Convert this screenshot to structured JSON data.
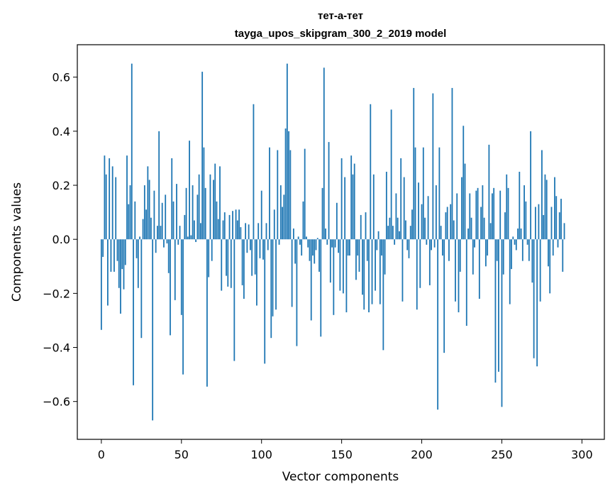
{
  "chart_data": {
    "type": "bar",
    "title": "тет-а-тет",
    "subtitle": "tayga_upos_skipgram_300_2_2019 model",
    "xlabel": "Vector components",
    "ylabel": "Components values",
    "xlim": [
      -15,
      314
    ],
    "ylim": [
      -0.74,
      0.72
    ],
    "xticks": [
      0,
      50,
      100,
      150,
      200,
      250,
      300
    ],
    "xtick_labels": [
      "0",
      "50",
      "100",
      "150",
      "200",
      "250",
      "300"
    ],
    "yticks": [
      -0.6,
      -0.4,
      -0.2,
      0.0,
      0.2,
      0.4,
      0.6
    ],
    "ytick_labels": [
      "−0.6",
      "−0.4",
      "−0.2",
      "0.0",
      "0.2",
      "0.4",
      "0.6"
    ],
    "color": "#1f77b4",
    "values": [
      -0.335,
      -0.065,
      0.31,
      0.24,
      -0.245,
      0.3,
      -0.12,
      0.27,
      -0.12,
      0.23,
      -0.08,
      -0.18,
      -0.275,
      -0.11,
      -0.185,
      -0.095,
      0.31,
      0.13,
      0.2,
      0.65,
      -0.54,
      0.14,
      -0.07,
      -0.18,
      0.01,
      -0.365,
      0.075,
      0.2,
      0.11,
      0.27,
      0.22,
      0.08,
      -0.67,
      0.18,
      -0.05,
      0.05,
      0.4,
      0.05,
      0.135,
      -0.03,
      0.165,
      -0.015,
      -0.125,
      -0.355,
      0.3,
      0.14,
      -0.225,
      0.205,
      -0.02,
      0.05,
      -0.28,
      -0.5,
      0.09,
      0.19,
      0.01,
      0.365,
      0.015,
      0.2,
      0.07,
      -0.01,
      0.165,
      0.24,
      0.06,
      0.62,
      0.34,
      0.19,
      -0.545,
      -0.14,
      0.24,
      -0.08,
      0.22,
      0.28,
      0.14,
      0.075,
      0.27,
      -0.19,
      0.07,
      0.1,
      -0.135,
      -0.175,
      0.09,
      -0.18,
      0.105,
      -0.45,
      0.11,
      0.07,
      0.11,
      0.045,
      -0.17,
      -0.22,
      0.06,
      -0.05,
      0.055,
      -0.04,
      -0.135,
      0.5,
      -0.13,
      -0.245,
      0.06,
      -0.07,
      0.18,
      -0.075,
      -0.46,
      0.06,
      -0.04,
      0.34,
      -0.365,
      -0.285,
      0.11,
      -0.26,
      0.33,
      -0.02,
      0.2,
      0.12,
      0.165,
      0.41,
      0.65,
      0.4,
      0.33,
      -0.25,
      0.04,
      -0.09,
      -0.395,
      0.01,
      -0.02,
      -0.06,
      0.14,
      0.335,
      0.01,
      -0.03,
      -0.08,
      -0.3,
      -0.06,
      -0.09,
      -0.04,
      0.005,
      -0.12,
      -0.36,
      0.19,
      0.635,
      0.04,
      -0.02,
      0.36,
      -0.16,
      -0.03,
      -0.28,
      -0.03,
      0.135,
      -0.05,
      -0.19,
      0.3,
      -0.2,
      0.23,
      -0.27,
      -0.06,
      -0.06,
      0.31,
      0.24,
      0.28,
      -0.15,
      -0.06,
      -0.12,
      0.09,
      -0.205,
      -0.26,
      0.1,
      -0.08,
      -0.27,
      0.5,
      -0.24,
      0.24,
      -0.19,
      -0.04,
      0.03,
      -0.24,
      -0.06,
      -0.41,
      -0.13,
      0.25,
      0.05,
      0.08,
      0.48,
      0.05,
      -0.02,
      0.17,
      0.08,
      0.03,
      0.3,
      -0.23,
      0.23,
      0.07,
      -0.04,
      -0.07,
      0.05,
      0.11,
      0.56,
      0.34,
      -0.26,
      0.21,
      -0.18,
      0.13,
      0.34,
      0.08,
      -0.02,
      0.16,
      -0.17,
      -0.04,
      0.54,
      -0.03,
      0.2,
      -0.63,
      0.34,
      0.05,
      -0.06,
      -0.42,
      0.1,
      0.12,
      -0.08,
      0.13,
      0.56,
      0.07,
      -0.23,
      0.17,
      -0.27,
      -0.12,
      0.23,
      0.42,
      0.28,
      -0.32,
      0.04,
      0.17,
      0.08,
      -0.13,
      -0.03,
      0.18,
      0.19,
      -0.22,
      0.12,
      0.2,
      0.08,
      -0.1,
      -0.06,
      0.35,
      0.06,
      0.17,
      0.19,
      -0.53,
      -0.08,
      -0.49,
      0.18,
      -0.62,
      -0.13,
      0.1,
      0.24,
      0.19,
      -0.24,
      -0.11,
      0.01,
      -0.02,
      -0.04,
      0.04,
      0.25,
      0.04,
      -0.08,
      0.2,
      0.14,
      -0.02,
      -0.08,
      0.4,
      -0.16,
      -0.44,
      0.12,
      -0.47,
      0.13,
      -0.23,
      0.33,
      0.09,
      0.24,
      0.22,
      -0.1,
      -0.2,
      0.12,
      -0.06,
      0.23,
      0.16,
      -0.03,
      0.1,
      0.15,
      -0.12,
      0.06
    ]
  }
}
